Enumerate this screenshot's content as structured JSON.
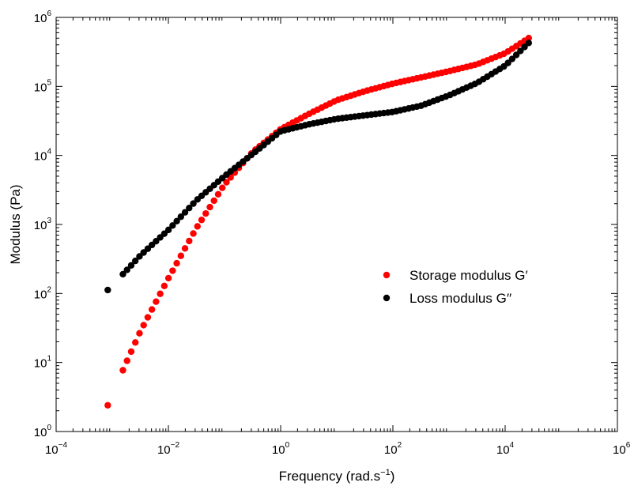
{
  "chart_data": {
    "type": "scatter",
    "xlabel": {
      "main": "Frequency (rad.s",
      "sup": "−1",
      "close": ")"
    },
    "ylabel": "Modulus (Pa)",
    "x_scale": "log",
    "y_scale": "log",
    "xlim": [
      0.0001,
      1000000
    ],
    "ylim": [
      1,
      1000000
    ],
    "x_ticks": [
      {
        "base": "10",
        "exp": "−4",
        "value": 0.0001
      },
      {
        "base": "10",
        "exp": "−2",
        "value": 0.01
      },
      {
        "base": "10",
        "exp": "0",
        "value": 1
      },
      {
        "base": "10",
        "exp": "2",
        "value": 100
      },
      {
        "base": "10",
        "exp": "4",
        "value": 10000
      },
      {
        "base": "10",
        "exp": "6",
        "value": 1000000
      }
    ],
    "y_ticks": [
      {
        "base": "10",
        "exp": "0",
        "value": 1
      },
      {
        "base": "10",
        "exp": "1",
        "value": 10
      },
      {
        "base": "10",
        "exp": "2",
        "value": 100
      },
      {
        "base": "10",
        "exp": "3",
        "value": 1000
      },
      {
        "base": "10",
        "exp": "4",
        "value": 10000
      },
      {
        "base": "10",
        "exp": "5",
        "value": 100000
      },
      {
        "base": "10",
        "exp": "6",
        "value": 1000000
      }
    ],
    "grid": false,
    "legend_position": "right-middle",
    "series": [
      {
        "name": "Storage modulus G′",
        "color": "#ff0000",
        "x_log10_start": -3.08,
        "x_log10_end": 4.42,
        "n_points": 100,
        "y_log10_anchors": [
          [
            -3.08,
            0.38
          ],
          [
            -2.75,
            1.0
          ],
          [
            -2.5,
            1.45
          ],
          [
            -2.0,
            2.22
          ],
          [
            -1.5,
            2.95
          ],
          [
            -1.0,
            3.58
          ],
          [
            -0.5,
            4.05
          ],
          [
            0.0,
            4.38
          ],
          [
            0.5,
            4.6
          ],
          [
            1.0,
            4.8
          ],
          [
            1.5,
            4.93
          ],
          [
            2.0,
            5.04
          ],
          [
            2.5,
            5.13
          ],
          [
            3.0,
            5.22
          ],
          [
            3.5,
            5.32
          ],
          [
            4.0,
            5.48
          ],
          [
            4.42,
            5.7
          ]
        ]
      },
      {
        "name": "Loss modulus  G′′",
        "color": "#000000",
        "x_log10_start": -3.08,
        "x_log10_end": 4.42,
        "n_points": 100,
        "y_log10_anchors": [
          [
            -3.08,
            2.05
          ],
          [
            -2.75,
            2.33
          ],
          [
            -2.5,
            2.55
          ],
          [
            -2.0,
            2.92
          ],
          [
            -1.5,
            3.35
          ],
          [
            -1.0,
            3.7
          ],
          [
            -0.5,
            4.02
          ],
          [
            0.0,
            4.35
          ],
          [
            0.5,
            4.45
          ],
          [
            1.0,
            4.53
          ],
          [
            1.5,
            4.58
          ],
          [
            2.0,
            4.63
          ],
          [
            2.5,
            4.72
          ],
          [
            3.0,
            4.87
          ],
          [
            3.5,
            5.05
          ],
          [
            4.0,
            5.3
          ],
          [
            4.42,
            5.63
          ]
        ]
      }
    ]
  }
}
